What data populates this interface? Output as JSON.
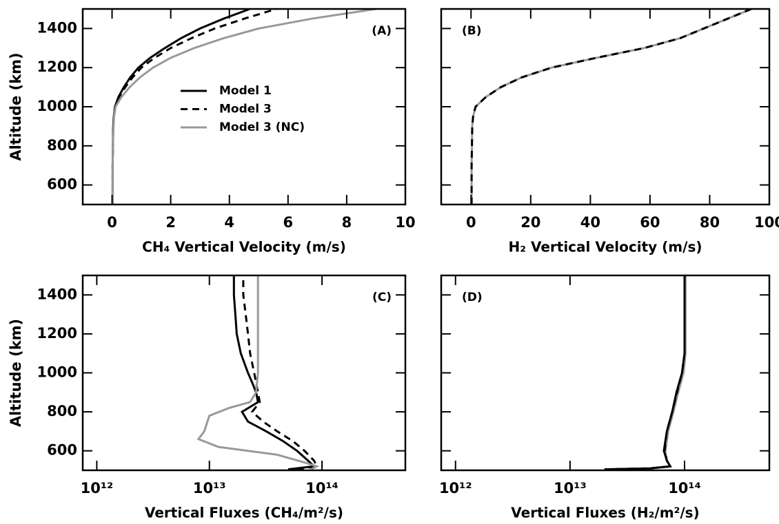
{
  "chart_data": [
    {
      "type": "line",
      "panel_label": "(A)",
      "xlabel": "CH₄ Vertical Velocity (m/s)",
      "ylabel": "Altitude (km)",
      "xlim": [
        -1,
        10
      ],
      "xticks": [
        0,
        2,
        4,
        6,
        8,
        10
      ],
      "ylim": [
        500,
        1500
      ],
      "yticks": [
        600,
        800,
        1000,
        1200,
        1400
      ],
      "ytick_labels": true,
      "xscale": "linear",
      "legend": "center",
      "series": [
        {
          "name": "Model 1",
          "color": "#000000",
          "dash": false,
          "altitude": [
            500,
            600,
            700,
            800,
            900,
            950,
            1000,
            1050,
            1100,
            1150,
            1200,
            1250,
            1300,
            1350,
            1400,
            1450,
            1500
          ],
          "values": [
            0.02,
            0.02,
            0.02,
            0.03,
            0.04,
            0.06,
            0.1,
            0.22,
            0.4,
            0.62,
            0.9,
            1.3,
            1.8,
            2.35,
            3.0,
            3.8,
            4.7
          ]
        },
        {
          "name": "Model 3",
          "color": "#000000",
          "dash": true,
          "altitude": [
            500,
            600,
            700,
            800,
            900,
            950,
            1000,
            1050,
            1100,
            1150,
            1200,
            1250,
            1300,
            1350,
            1400,
            1450,
            1500
          ],
          "values": [
            0.02,
            0.02,
            0.02,
            0.03,
            0.04,
            0.06,
            0.1,
            0.24,
            0.45,
            0.7,
            1.0,
            1.45,
            2.0,
            2.7,
            3.5,
            4.5,
            5.6
          ]
        },
        {
          "name": "Model 3 (NC)",
          "color": "#999999",
          "dash": false,
          "altitude": [
            500,
            600,
            700,
            800,
            900,
            950,
            1000,
            1050,
            1100,
            1150,
            1200,
            1250,
            1300,
            1350,
            1400,
            1450,
            1500
          ],
          "values": [
            0.02,
            0.02,
            0.02,
            0.03,
            0.05,
            0.07,
            0.12,
            0.32,
            0.6,
            0.95,
            1.4,
            2.0,
            2.8,
            3.8,
            5.0,
            6.8,
            9.0
          ]
        }
      ]
    },
    {
      "type": "line",
      "panel_label": "(B)",
      "xlabel": "H₂ Vertical Velocity (m/s)",
      "xlim": [
        -10,
        100
      ],
      "xticks": [
        0,
        20,
        40,
        60,
        80,
        100
      ],
      "ylim": [
        500,
        1500
      ],
      "yticks": [
        600,
        800,
        1000,
        1200,
        1400
      ],
      "ytick_labels": false,
      "xscale": "linear",
      "series": [
        {
          "color": "#999999",
          "dash": false,
          "altitude": [
            500,
            600,
            700,
            800,
            900,
            950,
            1000,
            1050,
            1100,
            1150,
            1200,
            1250,
            1300,
            1350,
            1400,
            1450,
            1500
          ],
          "values": [
            0.2,
            0.2,
            0.2,
            0.3,
            0.4,
            0.7,
            1.5,
            5,
            10,
            17,
            27,
            42,
            58,
            70,
            78,
            86,
            94
          ]
        },
        {
          "color": "#000000",
          "dash": true,
          "altitude": [
            500,
            600,
            700,
            800,
            900,
            950,
            1000,
            1050,
            1100,
            1150,
            1200,
            1250,
            1300,
            1350,
            1400,
            1450,
            1500
          ],
          "values": [
            0.2,
            0.2,
            0.2,
            0.3,
            0.4,
            0.7,
            1.5,
            5,
            10,
            17,
            27,
            42,
            58,
            70,
            78,
            86,
            94
          ]
        }
      ]
    },
    {
      "type": "line",
      "panel_label": "(C)",
      "xlabel": "Vertical Fluxes (CH₄/m²/s)",
      "ylabel": "Altitude (km)",
      "xlim": [
        750000000000.0,
        550000000000000.0
      ],
      "xticks": [
        {
          "value": 1000000000000.0,
          "label": "10¹²"
        },
        {
          "value": 10000000000000.0,
          "label": "10¹³"
        },
        {
          "value": 100000000000000.0,
          "label": "10¹⁴"
        }
      ],
      "ylim": [
        500,
        1500
      ],
      "yticks": [
        600,
        800,
        1000,
        1200,
        1400
      ],
      "ytick_labels": true,
      "xscale": "log",
      "series": [
        {
          "color": "#000000",
          "dash": false,
          "altitude": [
            505,
            520,
            550,
            600,
            650,
            700,
            750,
            800,
            850,
            900,
            950,
            1000,
            1100,
            1200,
            1300,
            1400,
            1500
          ],
          "values": [
            50000000000000.0,
            85000000000000.0,
            75000000000000.0,
            60000000000000.0,
            45000000000000.0,
            32000000000000.0,
            22000000000000.0,
            19500000000000.0,
            27000000000000.0,
            26000000000000.0,
            24000000000000.0,
            22000000000000.0,
            19000000000000.0,
            17500000000000.0,
            17000000000000.0,
            16500000000000.0,
            16500000000000.0
          ]
        },
        {
          "color": "#000000",
          "dash": true,
          "altitude": [
            505,
            520,
            550,
            600,
            650,
            700,
            750,
            800,
            850,
            900,
            1000,
            1100,
            1200,
            1300,
            1400,
            1500
          ],
          "values": [
            60000000000000.0,
            90000000000000.0,
            85000000000000.0,
            70000000000000.0,
            55000000000000.0,
            40000000000000.0,
            30000000000000.0,
            24000000000000.0,
            28000000000000.0,
            27000000000000.0,
            25000000000000.0,
            23000000000000.0,
            22000000000000.0,
            21000000000000.0,
            20000000000000.0,
            20000000000000.0
          ]
        },
        {
          "color": "#999999",
          "dash": false,
          "altitude": [
            505,
            520,
            540,
            580,
            620,
            660,
            700,
            780,
            820,
            850,
            900,
            1000,
            1100,
            1200,
            1300,
            1400,
            1500
          ],
          "values": [
            80000000000000.0,
            90000000000000.0,
            70000000000000.0,
            40000000000000.0,
            12000000000000.0,
            8000000000000.0,
            9000000000000.0,
            10000000000000.0,
            15000000000000.0,
            23000000000000.0,
            26000000000000.0,
            27000000000000.0,
            27000000000000.0,
            27000000000000.0,
            27000000000000.0,
            27000000000000.0,
            27000000000000.0
          ]
        }
      ]
    },
    {
      "type": "line",
      "panel_label": "(D)",
      "xlabel": "Vertical Fluxes (H₂/m²/s)",
      "xlim": [
        750000000000.0,
        550000000000000.0
      ],
      "xticks": [
        {
          "value": 1000000000000.0,
          "label": "10¹²"
        },
        {
          "value": 10000000000000.0,
          "label": "10¹³"
        },
        {
          "value": 100000000000000.0,
          "label": "10¹⁴"
        }
      ],
      "ylim": [
        500,
        1500
      ],
      "yticks": [
        600,
        800,
        1000,
        1200,
        1400
      ],
      "ytick_labels": false,
      "xscale": "log",
      "series": [
        {
          "color": "#999999",
          "dash": false,
          "altitude": [
            505,
            510,
            520,
            550,
            600,
            700,
            800,
            900,
            1000,
            1100,
            1200,
            1300,
            1400,
            1500
          ],
          "values": [
            20000000000000.0,
            50000000000000.0,
            75000000000000.0,
            70000000000000.0,
            68000000000000.0,
            72000000000000.0,
            80000000000000.0,
            88000000000000.0,
            98000000000000.0,
            102000000000000.0,
            102000000000000.0,
            102000000000000.0,
            102000000000000.0,
            102000000000000.0
          ]
        },
        {
          "color": "#000000",
          "dash": true,
          "altitude": [
            505,
            510,
            520,
            550,
            600,
            700,
            800,
            900,
            1000,
            1100,
            1200,
            1300,
            1400,
            1500
          ],
          "values": [
            20000000000000.0,
            50000000000000.0,
            75000000000000.0,
            70000000000000.0,
            67000000000000.0,
            70000000000000.0,
            78000000000000.0,
            86000000000000.0,
            95000000000000.0,
            100000000000000.0,
            100000000000000.0,
            100000000000000.0,
            100000000000000.0,
            100000000000000.0
          ]
        },
        {
          "color": "#000000",
          "dash": false,
          "altitude": [
            505,
            510,
            520,
            550,
            600,
            700,
            800,
            900,
            1000,
            1100,
            1200,
            1300,
            1400,
            1500
          ],
          "values": [
            20000000000000.0,
            50000000000000.0,
            75000000000000.0,
            70000000000000.0,
            66000000000000.0,
            70000000000000.0,
            78000000000000.0,
            85000000000000.0,
            95000000000000.0,
            100000000000000.0,
            100000000000000.0,
            100000000000000.0,
            100000000000000.0,
            100000000000000.0
          ]
        }
      ]
    }
  ]
}
